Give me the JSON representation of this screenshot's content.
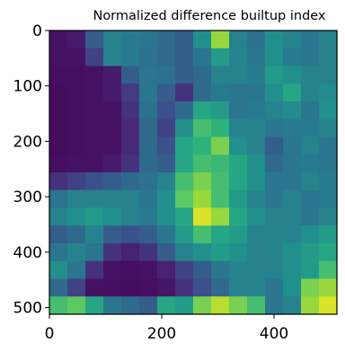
{
  "chart_data": {
    "type": "heatmap",
    "title": "Normalized difference builtup index",
    "xlabel": "",
    "ylabel": "",
    "xlim": [
      0,
      512
    ],
    "ylim": [
      512,
      0
    ],
    "x_ticks": [
      0,
      200,
      400
    ],
    "y_ticks": [
      0,
      100,
      200,
      300,
      400,
      500
    ],
    "x_tick_labels": [
      "0",
      "200",
      "400"
    ],
    "y_tick_labels": [
      "0",
      "100",
      "200",
      "300",
      "400",
      "500"
    ],
    "colormap": "viridis",
    "value_range": [
      0,
      1
    ],
    "grid": false,
    "legend": "none",
    "cell_size": 32,
    "values": [
      [
        0.05,
        0.08,
        0.3,
        0.45,
        0.42,
        0.4,
        0.35,
        0.3,
        0.5,
        0.85,
        0.45,
        0.38,
        0.5,
        0.45,
        0.4,
        0.45
      ],
      [
        0.05,
        0.05,
        0.2,
        0.45,
        0.42,
        0.38,
        0.35,
        0.3,
        0.4,
        0.55,
        0.45,
        0.4,
        0.5,
        0.42,
        0.4,
        0.45
      ],
      [
        0.04,
        0.04,
        0.05,
        0.08,
        0.3,
        0.4,
        0.38,
        0.3,
        0.35,
        0.45,
        0.45,
        0.42,
        0.55,
        0.5,
        0.45,
        0.45
      ],
      [
        0.03,
        0.04,
        0.05,
        0.08,
        0.18,
        0.4,
        0.3,
        0.15,
        0.35,
        0.42,
        0.4,
        0.4,
        0.5,
        0.6,
        0.45,
        0.48
      ],
      [
        0.03,
        0.04,
        0.05,
        0.05,
        0.15,
        0.38,
        0.25,
        0.35,
        0.6,
        0.55,
        0.4,
        0.42,
        0.45,
        0.48,
        0.4,
        0.5
      ],
      [
        0.03,
        0.04,
        0.05,
        0.05,
        0.12,
        0.35,
        0.2,
        0.5,
        0.7,
        0.65,
        0.45,
        0.45,
        0.4,
        0.42,
        0.42,
        0.45
      ],
      [
        0.03,
        0.04,
        0.05,
        0.05,
        0.12,
        0.35,
        0.25,
        0.6,
        0.65,
        0.8,
        0.5,
        0.45,
        0.3,
        0.4,
        0.45,
        0.4
      ],
      [
        0.04,
        0.05,
        0.05,
        0.08,
        0.15,
        0.35,
        0.3,
        0.6,
        0.7,
        0.68,
        0.6,
        0.5,
        0.35,
        0.4,
        0.42,
        0.4
      ],
      [
        0.15,
        0.2,
        0.25,
        0.3,
        0.35,
        0.38,
        0.45,
        0.7,
        0.8,
        0.7,
        0.6,
        0.5,
        0.4,
        0.4,
        0.45,
        0.42
      ],
      [
        0.4,
        0.45,
        0.45,
        0.45,
        0.45,
        0.4,
        0.5,
        0.75,
        0.85,
        0.7,
        0.55,
        0.45,
        0.4,
        0.45,
        0.4,
        0.42
      ],
      [
        0.45,
        0.5,
        0.55,
        0.5,
        0.45,
        0.42,
        0.5,
        0.6,
        0.95,
        0.85,
        0.6,
        0.5,
        0.45,
        0.45,
        0.4,
        0.45
      ],
      [
        0.3,
        0.35,
        0.45,
        0.3,
        0.25,
        0.3,
        0.4,
        0.55,
        0.7,
        0.6,
        0.55,
        0.45,
        0.45,
        0.45,
        0.5,
        0.55
      ],
      [
        0.4,
        0.45,
        0.4,
        0.15,
        0.1,
        0.15,
        0.3,
        0.45,
        0.5,
        0.55,
        0.5,
        0.45,
        0.45,
        0.5,
        0.55,
        0.6
      ],
      [
        0.5,
        0.4,
        0.15,
        0.05,
        0.04,
        0.05,
        0.1,
        0.2,
        0.3,
        0.4,
        0.45,
        0.45,
        0.45,
        0.5,
        0.55,
        0.7
      ],
      [
        0.35,
        0.2,
        0.05,
        0.04,
        0.03,
        0.04,
        0.06,
        0.15,
        0.25,
        0.35,
        0.45,
        0.45,
        0.4,
        0.5,
        0.8,
        0.85
      ],
      [
        0.7,
        0.75,
        0.6,
        0.4,
        0.35,
        0.3,
        0.6,
        0.55,
        0.8,
        0.9,
        0.8,
        0.7,
        0.4,
        0.45,
        0.85,
        0.95
      ]
    ]
  }
}
